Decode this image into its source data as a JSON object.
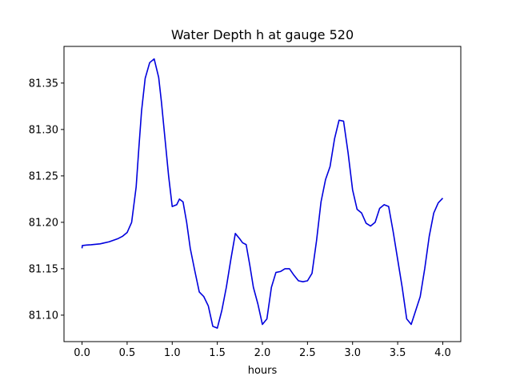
{
  "chart_data": {
    "type": "line",
    "title": "Water Depth h at gauge 520",
    "xlabel": "hours",
    "ylabel": "",
    "xlim": [
      -0.2,
      4.2
    ],
    "ylim": [
      81.0715,
      81.3895
    ],
    "grid": false,
    "x_ticks": [
      0.0,
      0.5,
      1.0,
      1.5,
      2.0,
      2.5,
      3.0,
      3.5,
      4.0
    ],
    "x_tick_labels": [
      "0.0",
      "0.5",
      "1.0",
      "1.5",
      "2.0",
      "2.5",
      "3.0",
      "3.5",
      "4.0"
    ],
    "y_ticks": [
      81.1,
      81.15,
      81.2,
      81.25,
      81.3,
      81.35
    ],
    "y_tick_labels": [
      "81.10",
      "81.15",
      "81.20",
      "81.25",
      "81.30",
      "81.35"
    ],
    "series": [
      {
        "color": "#0000dd",
        "x": [
          0.0,
          0.003,
          0.05,
          0.1,
          0.2,
          0.3,
          0.4,
          0.45,
          0.5,
          0.55,
          0.6,
          0.63,
          0.66,
          0.7,
          0.75,
          0.8,
          0.85,
          0.88,
          0.92,
          0.96,
          1.0,
          1.05,
          1.08,
          1.12,
          1.16,
          1.2,
          1.25,
          1.3,
          1.35,
          1.4,
          1.45,
          1.5,
          1.55,
          1.6,
          1.65,
          1.7,
          1.75,
          1.78,
          1.82,
          1.86,
          1.9,
          1.95,
          2.0,
          2.05,
          2.1,
          2.15,
          2.2,
          2.25,
          2.3,
          2.35,
          2.4,
          2.45,
          2.5,
          2.55,
          2.6,
          2.65,
          2.7,
          2.75,
          2.8,
          2.85,
          2.9,
          2.95,
          3.0,
          3.05,
          3.1,
          3.15,
          3.2,
          3.25,
          3.3,
          3.35,
          3.4,
          3.45,
          3.5,
          3.55,
          3.6,
          3.65,
          3.7,
          3.75,
          3.8,
          3.85,
          3.9,
          3.95,
          4.0
        ],
        "values": [
          81.172,
          81.175,
          81.1755,
          81.1758,
          81.1768,
          81.179,
          81.1825,
          81.185,
          81.189,
          81.2,
          81.238,
          81.28,
          81.32,
          81.355,
          81.372,
          81.376,
          81.356,
          81.33,
          81.29,
          81.25,
          81.217,
          81.219,
          81.225,
          81.222,
          81.2,
          81.172,
          81.148,
          81.125,
          81.12,
          81.11,
          81.088,
          81.086,
          81.105,
          81.13,
          81.16,
          81.188,
          81.182,
          81.178,
          81.176,
          81.154,
          81.13,
          81.112,
          81.09,
          81.096,
          81.13,
          81.146,
          81.147,
          81.15,
          81.15,
          81.143,
          81.137,
          81.136,
          81.137,
          81.145,
          81.18,
          81.222,
          81.246,
          81.26,
          81.29,
          81.31,
          81.309,
          81.275,
          81.235,
          81.214,
          81.21,
          81.199,
          81.196,
          81.2,
          81.215,
          81.219,
          81.217,
          81.19,
          81.16,
          81.13,
          81.096,
          81.09,
          81.105,
          81.12,
          81.15,
          81.185,
          81.21,
          81.221,
          81.226
        ]
      }
    ]
  }
}
